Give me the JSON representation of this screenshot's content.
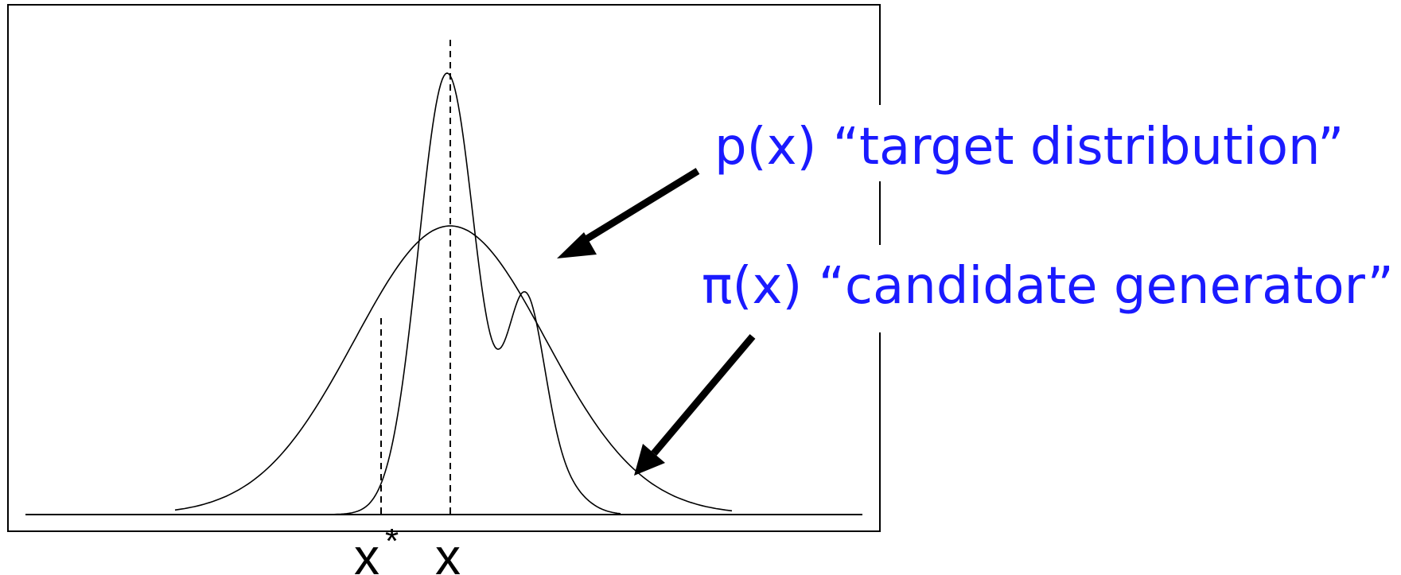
{
  "labels": {
    "target_label": "p(x) “target distribution”",
    "candidate_label": "π(x) “candidate generator”",
    "x_star": "x",
    "x_star_superscript": "*",
    "x": "x"
  },
  "colors": {
    "annotation": "#1a1aff",
    "curves": "#000000",
    "arrows": "#000000"
  }
}
